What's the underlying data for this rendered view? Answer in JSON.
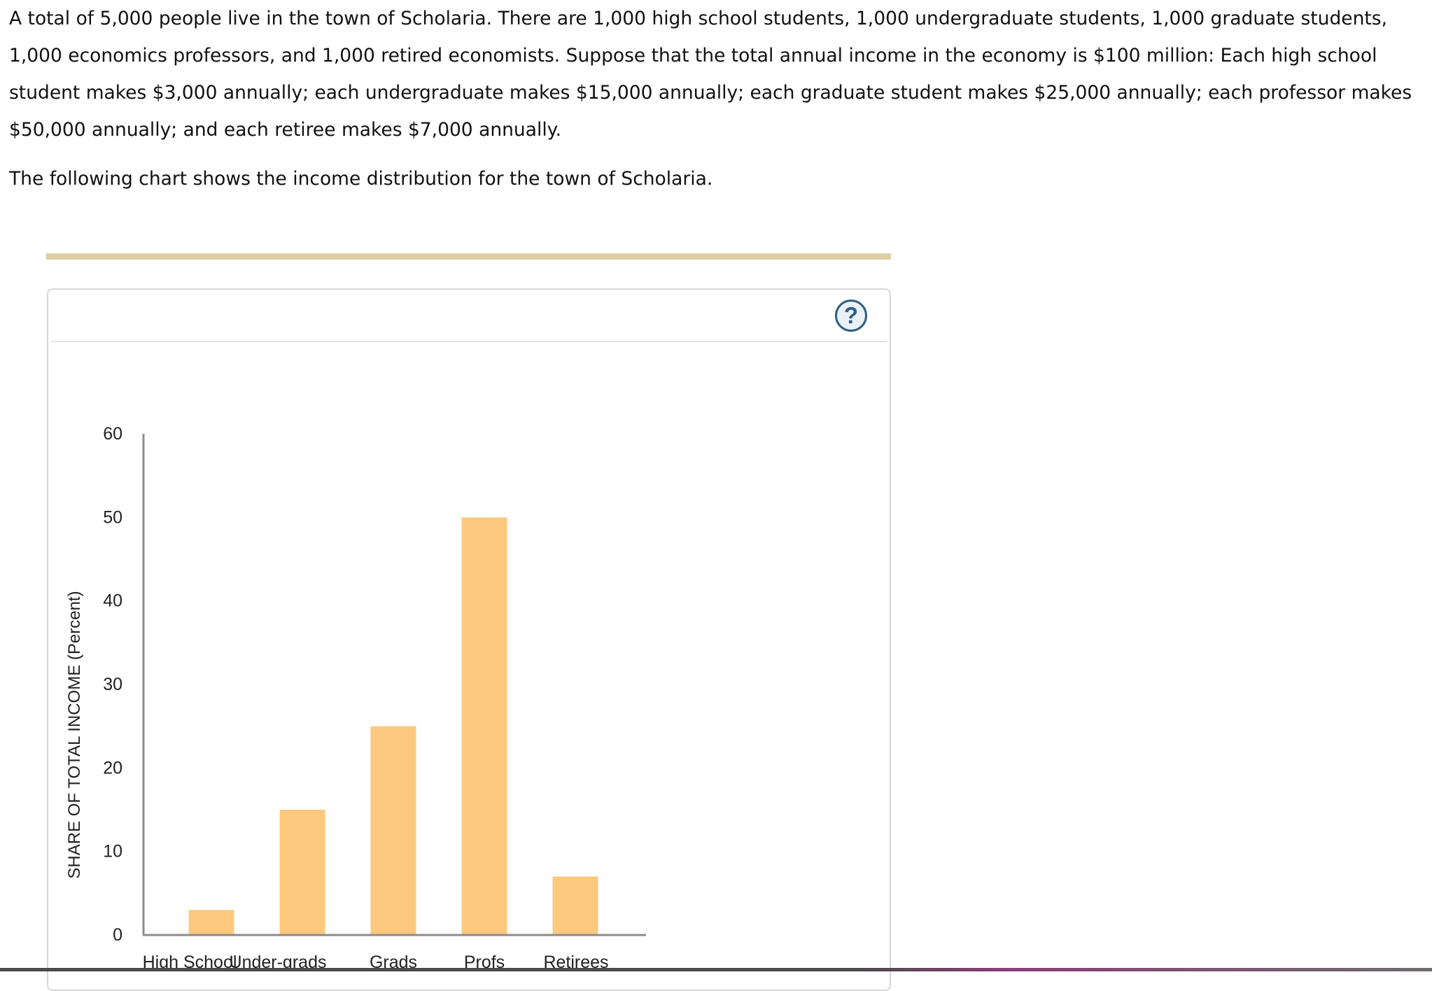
{
  "intro_paragraph": "A total of 5,000 people live in the town of Scholaria. There are 1,000 high school students, 1,000 undergraduate students, 1,000 graduate students, 1,000 economics professors, and 1,000 retired economists. Suppose that the total annual income in the economy is $100 million: Each high school student makes $3,000 annually; each undergraduate makes $15,000 annually; each graduate student makes $25,000 annually; each professor makes $50,000 annually; and each retiree makes $7,000 annually.",
  "chart_intro": "The following chart shows the income distribution for the town of Scholaria.",
  "help_label": "?",
  "colors": {
    "bar": "#fdc97e",
    "axis": "#8c8c8c",
    "rule": "#ddcfa2",
    "help": "#2e5f86"
  },
  "chart_data": {
    "type": "bar",
    "title": "",
    "xlabel": "",
    "ylabel": "SHARE OF TOTAL INCOME (Percent)",
    "categories": [
      "High School",
      "Under-grads",
      "Grads",
      "Profs",
      "Retirees"
    ],
    "values": [
      3,
      15,
      25,
      50,
      7
    ],
    "ylim": [
      0,
      60
    ],
    "yticks": [
      0,
      10,
      20,
      30,
      40,
      50,
      60
    ],
    "grid": false,
    "legend": "none"
  }
}
